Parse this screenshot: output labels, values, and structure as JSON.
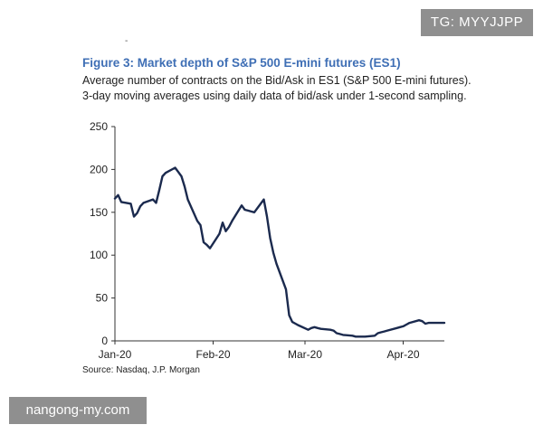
{
  "page": {
    "header_mark": "-",
    "watermark_top": "TG: MYYJJPP",
    "watermark_bottom": "nangong-my.com",
    "source": "Source: Nasdaq, J.P. Morgan"
  },
  "chart_data": {
    "type": "line",
    "title": "Figure 3: Market depth of S&P 500 E-mini futures (ES1)",
    "subtitle": "Average number of contracts on the Bid/Ask in ES1 (S&P 500 E-mini futures). 3-day moving averages using daily data of bid/ask under 1-second sampling.",
    "xlabel": "",
    "ylabel": "",
    "ylim": [
      0,
      250
    ],
    "yticks": [
      0,
      50,
      100,
      150,
      200,
      250
    ],
    "x_tick_labels": [
      "Jan-20",
      "Feb-20",
      "Mar-20",
      "Apr-20"
    ],
    "x_tick_dates": [
      "2020-01-01",
      "2020-02-01",
      "2020-03-01",
      "2020-04-01"
    ],
    "x_range": [
      "2020-01-01",
      "2020-04-14"
    ],
    "grid": false,
    "line_color": "#1b2a4e",
    "series": [
      {
        "name": "",
        "points": [
          [
            "2020-01-01",
            166
          ],
          [
            "2020-01-02",
            170
          ],
          [
            "2020-01-03",
            162
          ],
          [
            "2020-01-06",
            160
          ],
          [
            "2020-01-07",
            145
          ],
          [
            "2020-01-08",
            149
          ],
          [
            "2020-01-09",
            157
          ],
          [
            "2020-01-10",
            161
          ],
          [
            "2020-01-13",
            165
          ],
          [
            "2020-01-14",
            161
          ],
          [
            "2020-01-15",
            176
          ],
          [
            "2020-01-16",
            192
          ],
          [
            "2020-01-17",
            196
          ],
          [
            "2020-01-20",
            202
          ],
          [
            "2020-01-21",
            197
          ],
          [
            "2020-01-22",
            192
          ],
          [
            "2020-01-23",
            180
          ],
          [
            "2020-01-24",
            165
          ],
          [
            "2020-01-27",
            140
          ],
          [
            "2020-01-28",
            135
          ],
          [
            "2020-01-29",
            115
          ],
          [
            "2020-01-30",
            112
          ],
          [
            "2020-01-31",
            108
          ],
          [
            "2020-02-03",
            125
          ],
          [
            "2020-02-04",
            138
          ],
          [
            "2020-02-05",
            128
          ],
          [
            "2020-02-06",
            133
          ],
          [
            "2020-02-07",
            140
          ],
          [
            "2020-02-10",
            158
          ],
          [
            "2020-02-11",
            153
          ],
          [
            "2020-02-12",
            152
          ],
          [
            "2020-02-13",
            151
          ],
          [
            "2020-02-14",
            150
          ],
          [
            "2020-02-17",
            165
          ],
          [
            "2020-02-18",
            145
          ],
          [
            "2020-02-19",
            120
          ],
          [
            "2020-02-20",
            103
          ],
          [
            "2020-02-21",
            90
          ],
          [
            "2020-02-24",
            60
          ],
          [
            "2020-02-25",
            30
          ],
          [
            "2020-02-26",
            22
          ],
          [
            "2020-02-27",
            20
          ],
          [
            "2020-02-28",
            18
          ],
          [
            "2020-03-02",
            13
          ],
          [
            "2020-03-03",
            15
          ],
          [
            "2020-03-04",
            16
          ],
          [
            "2020-03-05",
            15
          ],
          [
            "2020-03-06",
            14
          ],
          [
            "2020-03-09",
            13
          ],
          [
            "2020-03-10",
            12
          ],
          [
            "2020-03-11",
            9
          ],
          [
            "2020-03-12",
            8
          ],
          [
            "2020-03-13",
            7
          ],
          [
            "2020-03-16",
            6
          ],
          [
            "2020-03-17",
            5
          ],
          [
            "2020-03-18",
            5
          ],
          [
            "2020-03-19",
            5
          ],
          [
            "2020-03-20",
            5
          ],
          [
            "2020-03-23",
            6
          ],
          [
            "2020-03-24",
            9
          ],
          [
            "2020-03-25",
            10
          ],
          [
            "2020-03-26",
            11
          ],
          [
            "2020-03-27",
            12
          ],
          [
            "2020-03-30",
            15
          ],
          [
            "2020-03-31",
            16
          ],
          [
            "2020-04-01",
            17
          ],
          [
            "2020-04-02",
            19
          ],
          [
            "2020-04-03",
            21
          ],
          [
            "2020-04-06",
            24
          ],
          [
            "2020-04-07",
            23
          ],
          [
            "2020-04-08",
            20
          ],
          [
            "2020-04-09",
            21
          ],
          [
            "2020-04-14",
            21
          ]
        ]
      }
    ]
  }
}
